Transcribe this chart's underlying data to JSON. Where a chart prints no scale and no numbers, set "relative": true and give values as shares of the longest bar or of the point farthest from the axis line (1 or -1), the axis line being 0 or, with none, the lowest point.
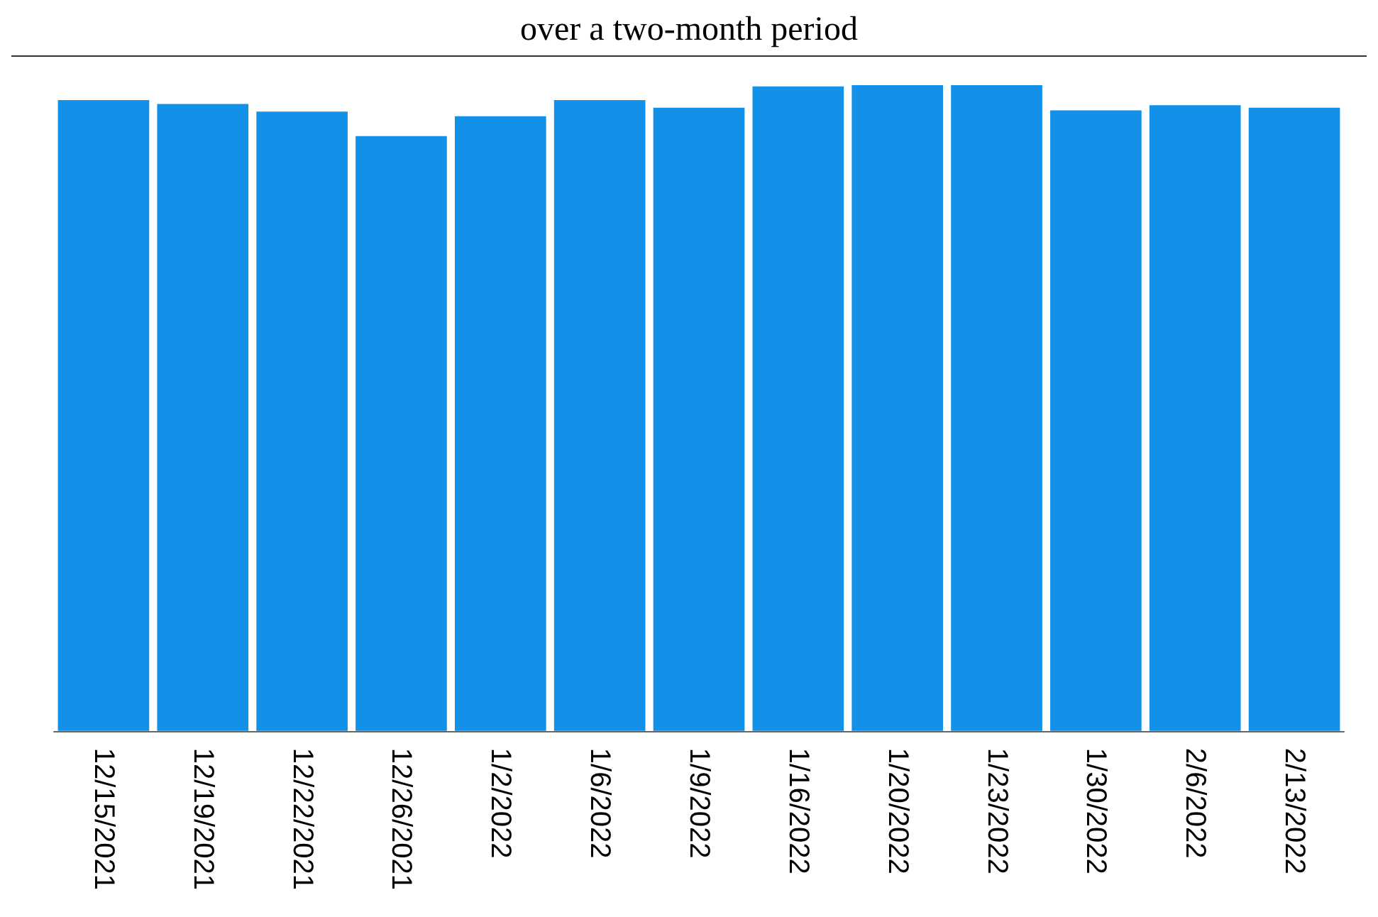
{
  "chart_data": {
    "type": "bar",
    "title": "over a two-month period",
    "relative": true,
    "categories": [
      "12/15/2021",
      "12/19/2021",
      "12/22/2021",
      "12/26/2021",
      "1/2/2022",
      "1/6/2022",
      "1/9/2022",
      "1/16/2022",
      "1/20/2022",
      "1/23/2022",
      "1/30/2022",
      "2/6/2022",
      "2/13/2022"
    ],
    "values": [
      0.977,
      0.971,
      0.959,
      0.921,
      0.952,
      0.977,
      0.965,
      0.998,
      1,
      1,
      0.961,
      0.969,
      0.965
    ],
    "color": "#1390e8"
  }
}
